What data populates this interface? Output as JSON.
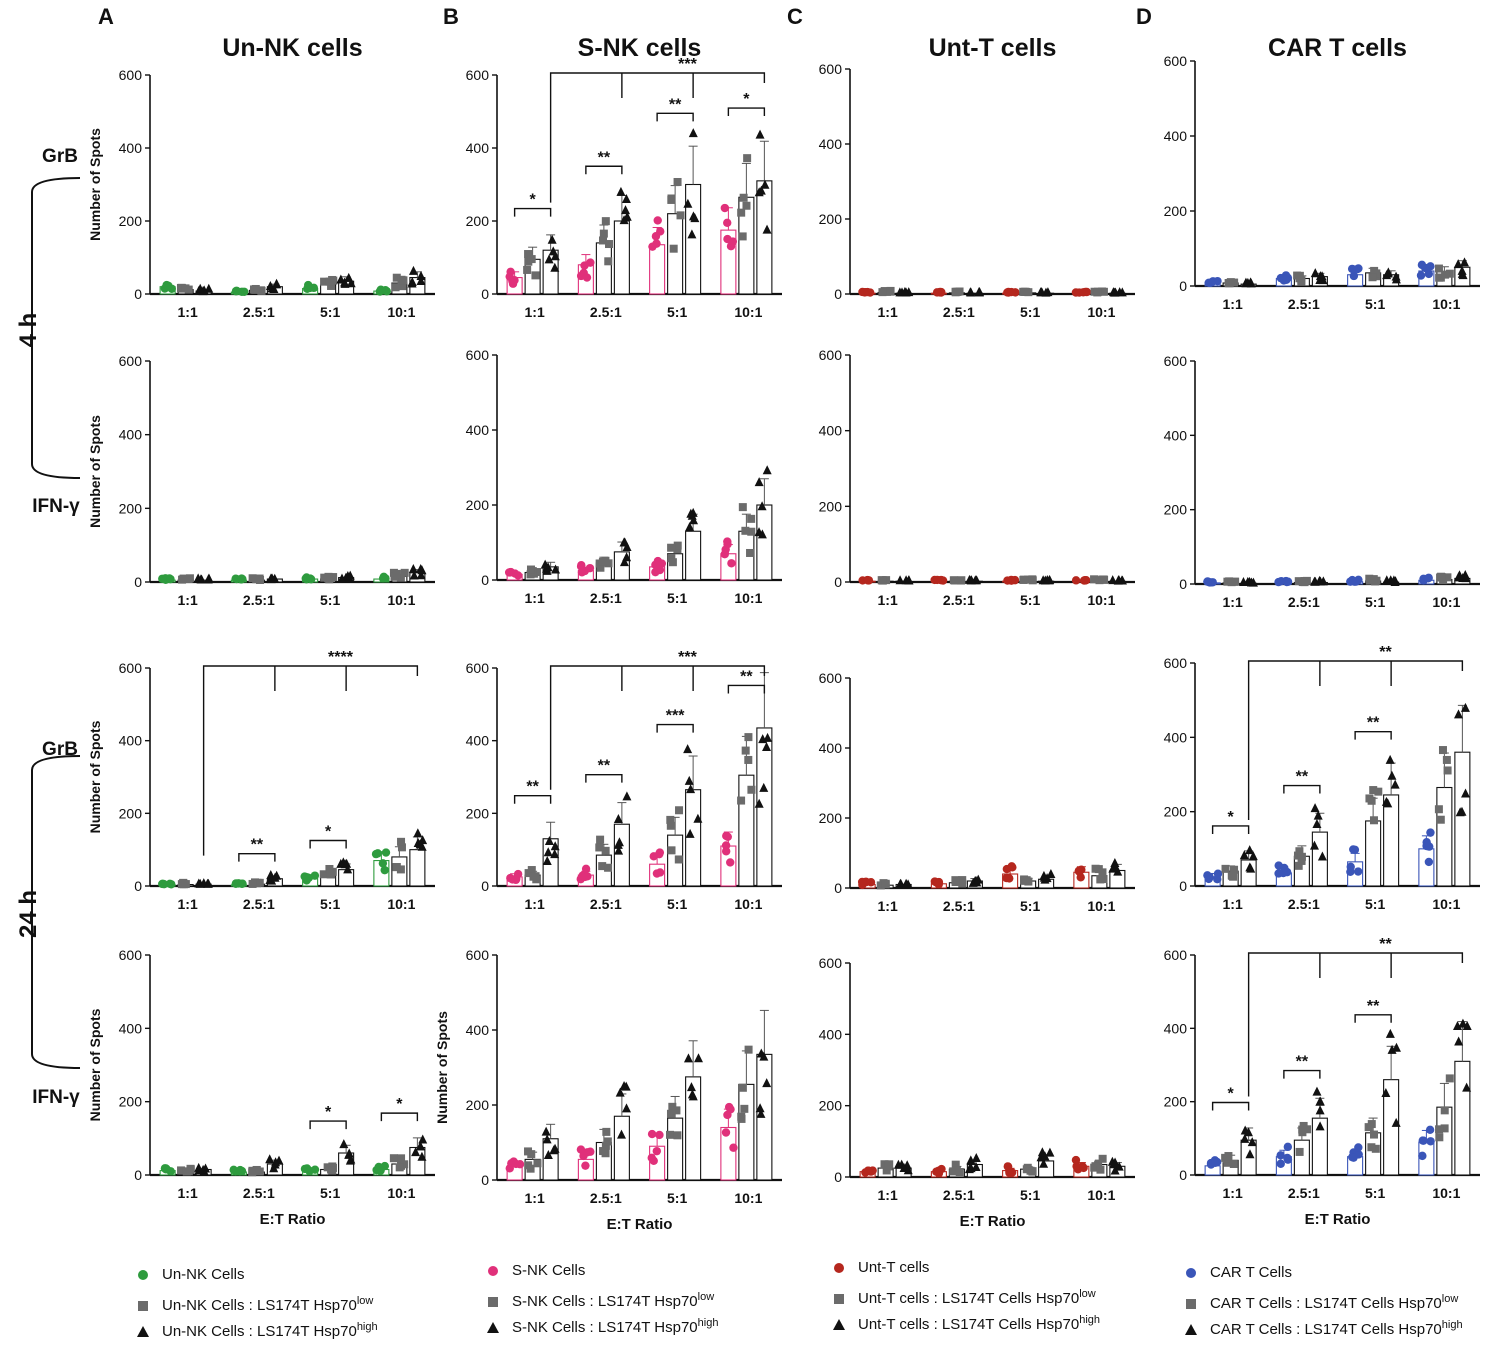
{
  "figure": {
    "panel_letters": [
      "A",
      "B",
      "C",
      "D"
    ],
    "column_titles": [
      "Un-NK cells",
      "S-NK cells",
      "Unt-T cells",
      "CAR T cells"
    ],
    "time_labels": [
      "4 h",
      "24 h"
    ],
    "readout_labels": [
      "GrB",
      "IFN-γ",
      "GrB",
      "IFN-γ"
    ],
    "ylabel": "Number of Spots",
    "xlabel": "E:T Ratio",
    "categories": [
      "1:1",
      "2.5:1",
      "5:1",
      "10:1"
    ],
    "yticks": [
      0,
      200,
      400,
      600
    ],
    "colors": {
      "green": "#2e9b3e",
      "magenta": "#e0307a",
      "red": "#b5271e",
      "blue": "#3a55b8",
      "gray": "#6b6b6b",
      "black": "#111111"
    }
  },
  "legends": [
    {
      "color": "#2e9b3e",
      "items": [
        "Un-NK Cells",
        "Un-NK Cells : LS174T Hsp70",
        "Un-NK Cells : LS174T Hsp70"
      ],
      "sups": [
        "",
        "low",
        "high"
      ]
    },
    {
      "color": "#e0307a",
      "items": [
        "S-NK Cells",
        "S-NK Cells : LS174T Hsp70",
        "S-NK Cells : LS174T Hsp70"
      ],
      "sups": [
        "",
        "low",
        "high"
      ]
    },
    {
      "color": "#b5271e",
      "items": [
        "Unt-T cells",
        "Unt-T cells : LS174T Cells Hsp70",
        "Unt-T cells : LS174T Cells Hsp70"
      ],
      "sups": [
        "",
        "low",
        "high"
      ]
    },
    {
      "color": "#3a55b8",
      "items": [
        "CAR T Cells",
        "CAR T Cells : LS174T Cells Hsp70",
        "CAR T Cells : LS174T Cells Hsp70"
      ],
      "sups": [
        "",
        "low",
        "high"
      ]
    }
  ],
  "chart_data": [
    {
      "type": "bar",
      "panel": "A",
      "time": "4 h",
      "readout": "GrB",
      "categories": [
        "1:1",
        "2.5:1",
        "5:1",
        "10:1"
      ],
      "ylim": [
        0,
        600
      ],
      "series": [
        {
          "name": "Un-NK Cells",
          "values": [
            20,
            5,
            15,
            8
          ]
        },
        {
          "name": "Un-NK Cells : LS174T Hsp70low",
          "values": [
            12,
            10,
            25,
            30
          ]
        },
        {
          "name": "Un-NK Cells : LS174T Hsp70high",
          "values": [
            8,
            20,
            35,
            45
          ]
        }
      ],
      "significance": []
    },
    {
      "type": "bar",
      "panel": "B",
      "time": "4 h",
      "readout": "GrB",
      "categories": [
        "1:1",
        "2.5:1",
        "5:1",
        "10:1"
      ],
      "ylim": [
        0,
        600
      ],
      "series": [
        {
          "name": "S-NK Cells",
          "values": [
            45,
            80,
            135,
            175
          ]
        },
        {
          "name": "S-NK Cells : LS174T Hsp70low",
          "values": [
            95,
            140,
            220,
            265
          ]
        },
        {
          "name": "S-NK Cells : LS174T Hsp70high",
          "values": [
            120,
            200,
            300,
            310
          ]
        }
      ],
      "significance": [
        "*",
        "**",
        "**",
        "*",
        "***"
      ]
    },
    {
      "type": "bar",
      "panel": "C",
      "time": "4 h",
      "readout": "GrB",
      "categories": [
        "1:1",
        "2.5:1",
        "5:1",
        "10:1"
      ],
      "ylim": [
        0,
        600
      ],
      "series": [
        {
          "name": "Unt-T cells",
          "values": [
            2,
            2,
            2,
            2
          ]
        },
        {
          "name": "Unt-T cells : LS174T Cells Hsp70low",
          "values": [
            4,
            3,
            3,
            3
          ]
        },
        {
          "name": "Unt-T cells : LS174T Cells Hsp70high",
          "values": [
            2,
            2,
            2,
            2
          ]
        }
      ],
      "significance": []
    },
    {
      "type": "bar",
      "panel": "D",
      "time": "4 h",
      "readout": "GrB",
      "categories": [
        "1:1",
        "2.5:1",
        "5:1",
        "10:1"
      ],
      "ylim": [
        0,
        600
      ],
      "series": [
        {
          "name": "CAR T Cells",
          "values": [
            10,
            20,
            30,
            40
          ]
        },
        {
          "name": "CAR T Cells : LS174T Cells Hsp70low",
          "values": [
            8,
            20,
            35,
            38
          ]
        },
        {
          "name": "CAR T Cells : LS174T Cells Hsp70high",
          "values": [
            5,
            25,
            30,
            50
          ]
        }
      ],
      "significance": []
    },
    {
      "type": "bar",
      "panel": "A",
      "time": "4 h",
      "readout": "IFN-γ",
      "categories": [
        "1:1",
        "2.5:1",
        "5:1",
        "10:1"
      ],
      "ylim": [
        0,
        600
      ],
      "series": [
        {
          "name": "Un-NK Cells",
          "values": [
            5,
            5,
            8,
            8
          ]
        },
        {
          "name": "Un-NK Cells : LS174T Hsp70low",
          "values": [
            5,
            5,
            8,
            15
          ]
        },
        {
          "name": "Un-NK Cells : LS174T Hsp70high",
          "values": [
            5,
            8,
            12,
            25
          ]
        }
      ],
      "significance": []
    },
    {
      "type": "bar",
      "panel": "B",
      "time": "4 h",
      "readout": "IFN-γ",
      "categories": [
        "1:1",
        "2.5:1",
        "5:1",
        "10:1"
      ],
      "ylim": [
        0,
        600
      ],
      "series": [
        {
          "name": "S-NK Cells",
          "values": [
            15,
            25,
            35,
            70
          ]
        },
        {
          "name": "S-NK Cells : LS174T Hsp70low",
          "values": [
            20,
            45,
            70,
            130
          ]
        },
        {
          "name": "S-NK Cells : LS174T Hsp70high",
          "values": [
            35,
            75,
            130,
            200
          ]
        }
      ],
      "significance": []
    },
    {
      "type": "bar",
      "panel": "C",
      "time": "4 h",
      "readout": "IFN-γ",
      "categories": [
        "1:1",
        "2.5:1",
        "5:1",
        "10:1"
      ],
      "ylim": [
        0,
        600
      ],
      "series": [
        {
          "name": "Unt-T cells",
          "values": [
            2,
            2,
            2,
            2
          ]
        },
        {
          "name": "Unt-T cells : LS174T Cells Hsp70low",
          "values": [
            2,
            2,
            3,
            3
          ]
        },
        {
          "name": "Unt-T cells : LS174T Cells Hsp70high",
          "values": [
            2,
            2,
            2,
            2
          ]
        }
      ],
      "significance": []
    },
    {
      "type": "bar",
      "panel": "D",
      "time": "4 h",
      "readout": "IFN-γ",
      "categories": [
        "1:1",
        "2.5:1",
        "5:1",
        "10:1"
      ],
      "ylim": [
        0,
        600
      ],
      "series": [
        {
          "name": "CAR T Cells",
          "values": [
            3,
            4,
            6,
            10
          ]
        },
        {
          "name": "CAR T Cells : LS174T Cells Hsp70low",
          "values": [
            3,
            4,
            8,
            12
          ]
        },
        {
          "name": "CAR T Cells : LS174T Cells Hsp70high",
          "values": [
            2,
            4,
            5,
            15
          ]
        }
      ],
      "significance": []
    },
    {
      "type": "bar",
      "panel": "A",
      "time": "24 h",
      "readout": "GrB",
      "categories": [
        "1:1",
        "2.5:1",
        "5:1",
        "10:1"
      ],
      "ylim": [
        0,
        600
      ],
      "series": [
        {
          "name": "Un-NK Cells",
          "values": [
            3,
            3,
            20,
            70
          ]
        },
        {
          "name": "Un-NK Cells : LS174T Hsp70low",
          "values": [
            4,
            5,
            30,
            80
          ]
        },
        {
          "name": "Un-NK Cells : LS174T Hsp70high",
          "values": [
            5,
            20,
            45,
            100
          ]
        }
      ],
      "significance": [
        "**",
        "*",
        "****"
      ]
    },
    {
      "type": "bar",
      "panel": "B",
      "time": "24 h",
      "readout": "GrB",
      "categories": [
        "1:1",
        "2.5:1",
        "5:1",
        "10:1"
      ],
      "ylim": [
        0,
        600
      ],
      "series": [
        {
          "name": "S-NK Cells",
          "values": [
            25,
            30,
            60,
            110
          ]
        },
        {
          "name": "S-NK Cells : LS174T Hsp70low",
          "values": [
            30,
            85,
            140,
            305
          ]
        },
        {
          "name": "S-NK Cells : LS174T Hsp70high",
          "values": [
            130,
            170,
            265,
            435
          ]
        }
      ],
      "significance": [
        "**",
        "**",
        "***",
        "**",
        "***"
      ]
    },
    {
      "type": "bar",
      "panel": "C",
      "time": "24 h",
      "readout": "GrB",
      "categories": [
        "1:1",
        "2.5:1",
        "5:1",
        "10:1"
      ],
      "ylim": [
        0,
        600
      ],
      "series": [
        {
          "name": "Unt-T cells",
          "values": [
            10,
            12,
            40,
            45
          ]
        },
        {
          "name": "Unt-T cells : LS174T Cells Hsp70low",
          "values": [
            8,
            15,
            20,
            35
          ]
        },
        {
          "name": "Unt-T cells : LS174T Cells Hsp70high",
          "values": [
            10,
            20,
            25,
            50
          ]
        }
      ],
      "significance": []
    },
    {
      "type": "bar",
      "panel": "D",
      "time": "24 h",
      "readout": "GrB",
      "categories": [
        "1:1",
        "2.5:1",
        "5:1",
        "10:1"
      ],
      "ylim": [
        0,
        600
      ],
      "series": [
        {
          "name": "CAR T Cells",
          "values": [
            25,
            35,
            65,
            100
          ]
        },
        {
          "name": "CAR T Cells : LS174T Cells Hsp70low",
          "values": [
            40,
            80,
            175,
            265
          ]
        },
        {
          "name": "CAR T Cells : LS174T Cells Hsp70high",
          "values": [
            70,
            145,
            245,
            360
          ]
        }
      ],
      "significance": [
        "*",
        "**",
        "**",
        "**"
      ]
    },
    {
      "type": "bar",
      "panel": "A",
      "time": "24 h",
      "readout": "IFN-γ",
      "categories": [
        "1:1",
        "2.5:1",
        "5:1",
        "10:1"
      ],
      "ylim": [
        0,
        600
      ],
      "series": [
        {
          "name": "Un-NK Cells",
          "values": [
            12,
            8,
            10,
            15
          ]
        },
        {
          "name": "Un-NK Cells : LS174T Hsp70low",
          "values": [
            10,
            8,
            15,
            30
          ]
        },
        {
          "name": "Un-NK Cells : LS174T Hsp70high",
          "values": [
            15,
            30,
            60,
            75
          ]
        }
      ],
      "significance": [
        "*",
        "*"
      ]
    },
    {
      "type": "bar",
      "panel": "B",
      "time": "24 h",
      "readout": "IFN-γ",
      "categories": [
        "1:1",
        "2.5:1",
        "5:1",
        "10:1"
      ],
      "ylim": [
        0,
        600
      ],
      "series": [
        {
          "name": "S-NK Cells",
          "values": [
            35,
            55,
            90,
            140
          ]
        },
        {
          "name": "S-NK Cells : LS174T Hsp70low",
          "values": [
            55,
            100,
            165,
            255
          ]
        },
        {
          "name": "S-NK Cells : LS174T Hsp70high",
          "values": [
            110,
            170,
            275,
            335
          ]
        }
      ],
      "significance": []
    },
    {
      "type": "bar",
      "panel": "C",
      "time": "24 h",
      "readout": "IFN-γ",
      "categories": [
        "1:1",
        "2.5:1",
        "5:1",
        "10:1"
      ],
      "ylim": [
        0,
        600
      ],
      "series": [
        {
          "name": "Unt-T cells",
          "values": [
            15,
            15,
            18,
            30
          ]
        },
        {
          "name": "Unt-T cells : LS174T Cells Hsp70low",
          "values": [
            25,
            22,
            22,
            35
          ]
        },
        {
          "name": "Unt-T cells : LS174T Cells Hsp70high",
          "values": [
            25,
            35,
            45,
            30
          ]
        }
      ],
      "significance": []
    },
    {
      "type": "bar",
      "panel": "D",
      "time": "24 h",
      "readout": "IFN-γ",
      "categories": [
        "1:1",
        "2.5:1",
        "5:1",
        "10:1"
      ],
      "ylim": [
        0,
        600
      ],
      "series": [
        {
          "name": "CAR T Cells",
          "values": [
            25,
            50,
            50,
            90
          ]
        },
        {
          "name": "CAR T Cells : LS174T Cells Hsp70low",
          "values": [
            40,
            95,
            115,
            185
          ]
        },
        {
          "name": "CAR T Cells : LS174T Cells Hsp70high",
          "values": [
            95,
            155,
            260,
            310
          ]
        }
      ],
      "significance": [
        "*",
        "**",
        "**",
        "**"
      ]
    }
  ]
}
